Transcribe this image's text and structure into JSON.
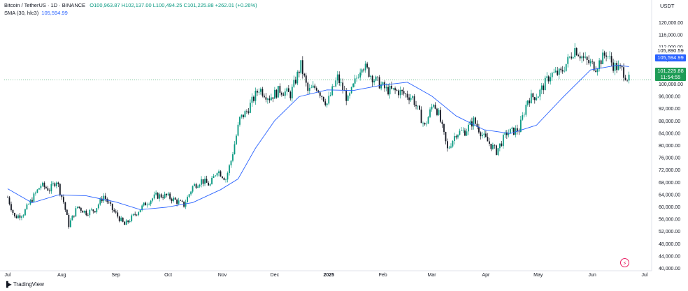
{
  "legend": {
    "symbol": "Bitcoin / TetherUS · 1D · BINANCE",
    "ohlc": "O100,963.87 H102,137.00 L100,494.25 C101,225.88 +262.01 (+0.26%)",
    "sma_label": "SMA (30, hlc3)",
    "sma_value": "105,594.99"
  },
  "unit": "USDT",
  "brand": "TradingView",
  "brand_icon": "tradingview-logo-icon",
  "flash_icon": "lightning-icon",
  "badges": {
    "high": "105,890.59",
    "sma": "105,594.99",
    "last": "101,225.88",
    "countdown": "11:54:55"
  },
  "colors": {
    "up": "#089981",
    "down": "#131722",
    "sma": "#2962ff",
    "last": "#1e9c56",
    "sma_badge": "#2962ff"
  },
  "chart_data": {
    "type": "line",
    "title": "",
    "xlabel": "",
    "ylabel": "",
    "x_ticks": [
      "Jul",
      "Aug",
      "Sep",
      "Oct",
      "Nov",
      "Dec",
      "2025",
      "Feb",
      "Mar",
      "Apr",
      "May",
      "Jun",
      "Jul"
    ],
    "y_ticks": [
      "40,000.00",
      "44,000.00",
      "48,000.00",
      "52,000.00",
      "56,000.00",
      "60,000.00",
      "64,000.00",
      "68,000.00",
      "72,000.00",
      "76,000.00",
      "80,000.00",
      "84,000.00",
      "88,000.00",
      "92,000.00",
      "96,000.00",
      "100,000.00",
      "104,000.00",
      "108,000.00",
      "112,000.00",
      "116,000.00",
      "120,000.00"
    ],
    "ylim": [
      40000,
      122000
    ],
    "grid": false,
    "series": [
      {
        "name": "Bitcoin / TetherUS",
        "points": [
          [
            "2024-07-01",
            63000
          ],
          [
            "2024-07-05",
            56500
          ],
          [
            "2024-07-10",
            57800
          ],
          [
            "2024-07-15",
            62500
          ],
          [
            "2024-07-20",
            67000
          ],
          [
            "2024-07-25",
            65500
          ],
          [
            "2024-07-29",
            68500
          ],
          [
            "2024-08-02",
            61500
          ],
          [
            "2024-08-05",
            54000
          ],
          [
            "2024-08-10",
            60000
          ],
          [
            "2024-08-15",
            58000
          ],
          [
            "2024-08-20",
            59000
          ],
          [
            "2024-08-25",
            63500
          ],
          [
            "2024-08-30",
            59000
          ],
          [
            "2024-09-06",
            54000
          ],
          [
            "2024-09-12",
            57500
          ],
          [
            "2024-09-18",
            61000
          ],
          [
            "2024-09-24",
            63500
          ],
          [
            "2024-09-30",
            63500
          ],
          [
            "2024-10-05",
            62000
          ],
          [
            "2024-10-10",
            60500
          ],
          [
            "2024-10-15",
            66500
          ],
          [
            "2024-10-20",
            68500
          ],
          [
            "2024-10-25",
            67000
          ],
          [
            "2024-10-29",
            72000
          ],
          [
            "2024-11-03",
            69000
          ],
          [
            "2024-11-06",
            75000
          ],
          [
            "2024-11-11",
            88500
          ],
          [
            "2024-11-15",
            91000
          ],
          [
            "2024-11-22",
            98500
          ],
          [
            "2024-11-28",
            95500
          ],
          [
            "2024-12-04",
            98000
          ],
          [
            "2024-12-10",
            96500
          ],
          [
            "2024-12-16",
            106000
          ],
          [
            "2024-12-20",
            97500
          ],
          [
            "2024-12-25",
            99000
          ],
          [
            "2024-12-31",
            93500
          ],
          [
            "2025-01-06",
            102000
          ],
          [
            "2025-01-12",
            94500
          ],
          [
            "2025-01-20",
            106500
          ],
          [
            "2025-01-27",
            101500
          ],
          [
            "2025-02-03",
            98000
          ],
          [
            "2025-02-10",
            97500
          ],
          [
            "2025-02-18",
            95500
          ],
          [
            "2025-02-25",
            86000
          ],
          [
            "2025-03-02",
            94000
          ],
          [
            "2025-03-05",
            90000
          ],
          [
            "2025-03-10",
            78500
          ],
          [
            "2025-03-15",
            84000
          ],
          [
            "2025-03-20",
            84500
          ],
          [
            "2025-03-25",
            88000
          ],
          [
            "2025-03-31",
            82500
          ],
          [
            "2025-04-07",
            78000
          ],
          [
            "2025-04-13",
            84000
          ],
          [
            "2025-04-20",
            85000
          ],
          [
            "2025-04-25",
            95000
          ],
          [
            "2025-05-01",
            96500
          ],
          [
            "2025-05-08",
            103000
          ],
          [
            "2025-05-14",
            103500
          ],
          [
            "2025-05-22",
            111500
          ],
          [
            "2025-05-28",
            107500
          ],
          [
            "2025-06-03",
            105500
          ],
          [
            "2025-06-09",
            110000
          ],
          [
            "2025-06-13",
            106000
          ],
          [
            "2025-06-18",
            104500
          ],
          [
            "2025-06-22",
            101225
          ]
        ]
      },
      {
        "name": "SMA (30, hlc3)",
        "points": [
          [
            "2024-07-01",
            65800
          ],
          [
            "2024-07-15",
            61200
          ],
          [
            "2024-07-30",
            63800
          ],
          [
            "2024-08-15",
            63500
          ],
          [
            "2024-09-01",
            61500
          ],
          [
            "2024-09-15",
            59000
          ],
          [
            "2024-09-30",
            59800
          ],
          [
            "2024-10-15",
            61300
          ],
          [
            "2024-10-31",
            65500
          ],
          [
            "2024-11-10",
            69000
          ],
          [
            "2024-11-20",
            79000
          ],
          [
            "2024-12-01",
            88000
          ],
          [
            "2024-12-15",
            95800
          ],
          [
            "2024-12-31",
            98000
          ],
          [
            "2025-01-15",
            97800
          ],
          [
            "2025-01-31",
            99500
          ],
          [
            "2025-02-15",
            100500
          ],
          [
            "2025-03-01",
            96000
          ],
          [
            "2025-03-15",
            89500
          ],
          [
            "2025-03-31",
            85000
          ],
          [
            "2025-04-15",
            83800
          ],
          [
            "2025-04-30",
            86500
          ],
          [
            "2025-05-15",
            95500
          ],
          [
            "2025-05-31",
            104500
          ],
          [
            "2025-06-15",
            106000
          ],
          [
            "2025-06-22",
            105595
          ]
        ]
      }
    ]
  }
}
